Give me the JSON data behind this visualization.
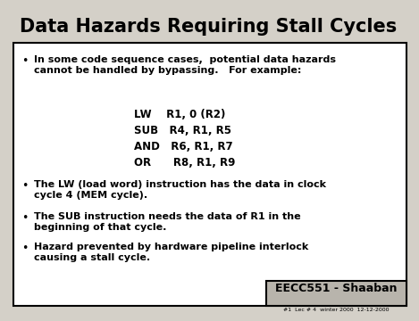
{
  "title": "Data Hazards Requiring Stall Cycles",
  "background_color": "#d4d0c8",
  "border_color": "#000000",
  "text_color": "#000000",
  "title_fontsize": 15,
  "body_fontsize": 8.0,
  "code_fontsize": 8.5,
  "footer_label": "EECC551 - Shaaban",
  "footer_sub": "#1  Lec # 4  winter 2000  12-12-2000",
  "bullet1": "In some code sequence cases,  potential data hazards\ncannot be handled by bypassing.   For example:",
  "bullet2": "The LW (load word) instruction has the data in clock\ncycle 4 (MEM cycle).",
  "bullet3": "The SUB instruction needs the data of R1 in the\nbeginning of that cycle.",
  "bullet4": "Hazard prevented by hardware pipeline interlock\ncausing a stall cycle.",
  "code_lines": [
    "LW    R1, 0 (R2)",
    "SUB   R4, R1, R5",
    "AND   R6, R1, R7",
    "OR      R8, R1, R9"
  ]
}
